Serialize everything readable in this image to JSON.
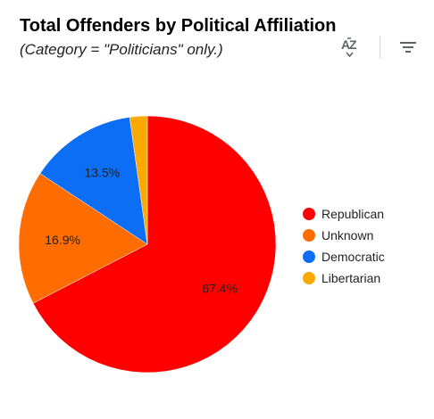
{
  "chart_data": {
    "type": "pie",
    "title": "Total Offenders by Political Affiliation",
    "subtitle": "(Category = \"Politicians\" only.)",
    "legend_position": "right",
    "slices": [
      {
        "name": "Republican",
        "value": 67.4,
        "label": "67.4%",
        "color": "#ff0000"
      },
      {
        "name": "Unknown",
        "value": 16.9,
        "label": "16.9%",
        "color": "#ff6d01"
      },
      {
        "name": "Democratic",
        "value": 13.5,
        "label": "13.5%",
        "color": "#0b6ef5"
      },
      {
        "name": "Libertarian",
        "value": 2.2,
        "label": "",
        "color": "#fba800"
      }
    ]
  },
  "toolbar": {
    "sort_icon": "sort-az-icon",
    "filter_icon": "filter-icon"
  }
}
